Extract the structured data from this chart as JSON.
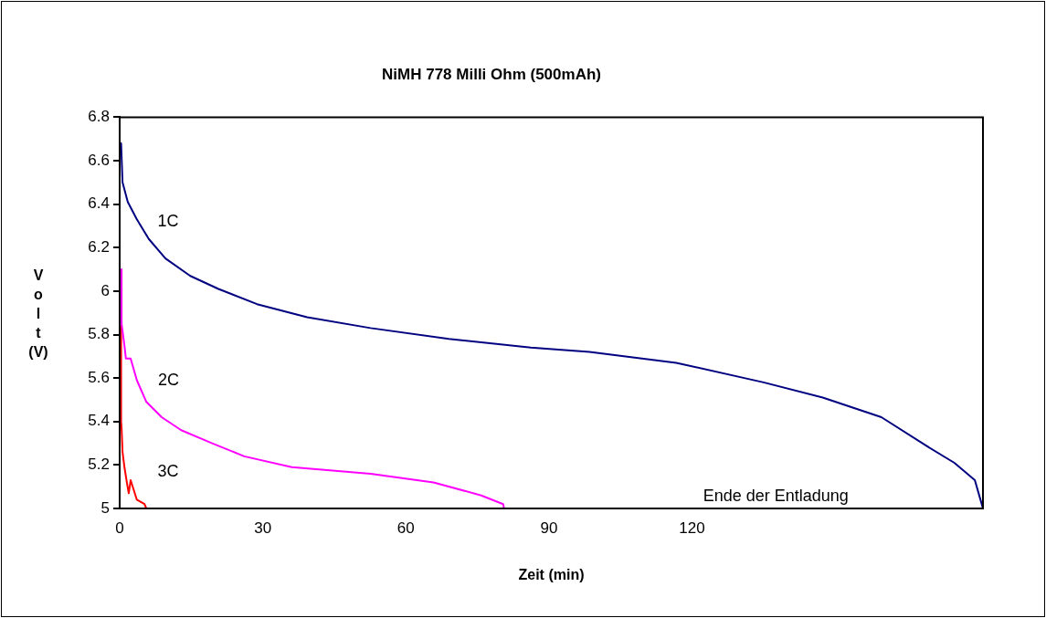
{
  "chart_data": {
    "type": "line",
    "title": "NiMH 778 Milli Ohm (500mAh)",
    "xlabel": "Zeit (min)",
    "ylabel": "Volt (V)",
    "xlim": [
      0,
      181
    ],
    "xticks": [
      0,
      30,
      60,
      90,
      120
    ],
    "ylim": [
      5,
      6.8
    ],
    "yticks": [
      5,
      5.2,
      5.4,
      5.6,
      5.8,
      6,
      6.2,
      6.4,
      6.6,
      6.8
    ],
    "grid": false,
    "legend": false,
    "marker": "none",
    "line_style": "solid",
    "series": [
      {
        "name": "1C",
        "color": "#000080",
        "x": [
          0.3,
          0.6,
          1.7,
          3.6,
          6.1,
          9.6,
          14.8,
          20.7,
          28.8,
          39.3,
          52.6,
          69,
          86.2,
          98.5,
          116.7,
          135,
          147.4,
          159.7,
          169,
          175,
          179.3,
          181
        ],
        "values": [
          6.68,
          6.5,
          6.41,
          6.33,
          6.24,
          6.15,
          6.07,
          6.01,
          5.94,
          5.88,
          5.83,
          5.78,
          5.74,
          5.72,
          5.67,
          5.58,
          5.51,
          5.42,
          5.29,
          5.21,
          5.13,
          5.0
        ]
      },
      {
        "name": "2C",
        "color": "#ff00ff",
        "x": [
          0.4,
          0.4,
          1,
          1.3,
          2.3,
          3.6,
          5.6,
          8.8,
          12.9,
          19.4,
          26.1,
          36.1,
          52.6,
          65.8,
          75.8,
          80.4,
          80.6
        ],
        "values": [
          6.1,
          5.85,
          5.75,
          5.69,
          5.69,
          5.59,
          5.49,
          5.42,
          5.36,
          5.3,
          5.24,
          5.19,
          5.16,
          5.12,
          5.06,
          5.02,
          5.0
        ]
      },
      {
        "name": "3C",
        "color": "#ff0000",
        "x": [
          0.3,
          0.3,
          0.4,
          0.6,
          1,
          1.5,
          1.9,
          2.3,
          3.6,
          5.2,
          5.6
        ],
        "values": [
          5.84,
          5.4,
          5.37,
          5.26,
          5.19,
          5.12,
          5.07,
          5.13,
          5.04,
          5.02,
          5.0
        ]
      }
    ],
    "annotations": [
      "Ende der Entladung"
    ]
  }
}
